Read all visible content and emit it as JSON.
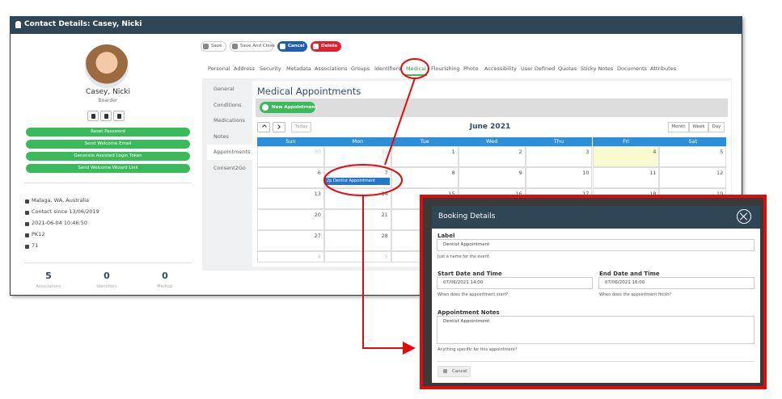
{
  "header": {
    "title": "Contact Details: Casey, Nicki"
  },
  "profile": {
    "name": "Casey, Nicki",
    "role": "Boarder",
    "actions": [
      "Reset Password",
      "Send Welcome Email",
      "Generate Assisted Login Token",
      "Send Welcome Wizard Link"
    ],
    "details": [
      "Malaga, WA, Australia",
      "Contact since 13/06/2019",
      "2021-06-04 10:46:50",
      "PK12",
      "71"
    ],
    "stats": [
      {
        "value": 5,
        "label": "Associations"
      },
      {
        "value": 0,
        "label": "Identifiers"
      },
      {
        "value": 0,
        "label": "Medical"
      }
    ]
  },
  "toolbar": [
    "Save",
    "Save And Close",
    "Cancel",
    "Delete"
  ],
  "tabs": [
    "Personal",
    "Address",
    "Security",
    "Metadata",
    "Associations",
    "Groups",
    "Identifiers",
    "Medical",
    "Flourishing",
    "Photo",
    "Accessibility",
    "User Defined",
    "Quotas",
    "Sticky Notes",
    "Documents",
    "Attributes"
  ],
  "active_tab": 7,
  "side_menu": [
    "General",
    "Conditions",
    "Medications",
    "Notes",
    "Appointments",
    "Consent2Go"
  ],
  "active_side": 4,
  "panel": {
    "title": "Medical Appointments",
    "new_button": "New Appointment",
    "calendar": {
      "today": "Today",
      "title": "June 2021",
      "views": [
        "Month",
        "Week",
        "Day"
      ],
      "days": [
        "Sun",
        "Mon",
        "Tue",
        "Wed",
        "Thu",
        "Fri",
        "Sat"
      ],
      "weeks": [
        [
          30,
          31,
          1,
          2,
          3,
          4,
          5
        ],
        [
          6,
          7,
          8,
          9,
          10,
          11,
          12
        ],
        [
          13,
          14,
          15,
          16,
          17,
          18,
          19
        ],
        [
          20,
          21,
          null,
          null,
          null,
          null,
          null
        ],
        [
          27,
          28,
          null,
          null,
          null,
          null,
          null
        ],
        [
          4,
          5,
          null,
          null,
          null,
          null,
          null
        ]
      ],
      "event": "2p Dentist Appointment"
    }
  },
  "modal": {
    "title": "Booking Details",
    "label": {
      "label": "Label",
      "value": "Dentist Appointment",
      "help": "Just a name for the event"
    },
    "start": {
      "label": "Start Date and Time",
      "value": "07/06/2021 14:00",
      "help": "When does the appointment start?"
    },
    "end": {
      "label": "End Date and Time",
      "value": "07/06/2021 16:00",
      "help": "When does the appointment finish?"
    },
    "notes": {
      "label": "Appointment Notes",
      "value": "Dentist Appointment",
      "help": "Anything specific for this appointment?"
    },
    "cancel": "Cancel"
  }
}
